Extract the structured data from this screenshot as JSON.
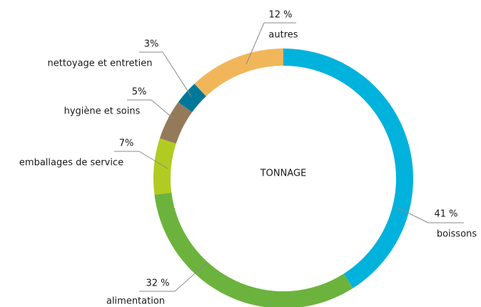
{
  "chart_data": {
    "type": "donut",
    "title": "TONNAGE",
    "categories": [
      "boissons",
      "alimentation",
      "emballages de service",
      "hygiène et soins",
      "nettoyage et entretien",
      "autres"
    ],
    "values": [
      41,
      32,
      7,
      5,
      3,
      12
    ],
    "value_labels": [
      "41 %",
      "32 %",
      "7%",
      "5%",
      "3%",
      "12 %"
    ],
    "colors": [
      "#00b2dc",
      "#6cb33e",
      "#b2cb22",
      "#957a5a",
      "#00789a",
      "#f2b65a"
    ]
  }
}
